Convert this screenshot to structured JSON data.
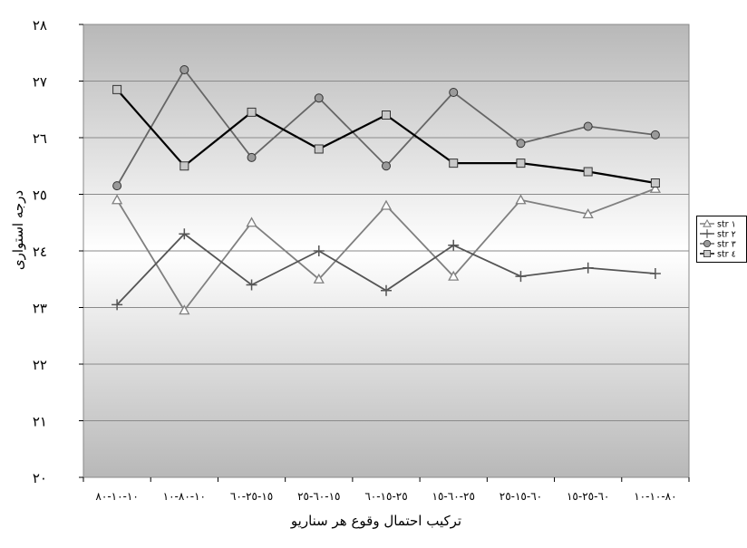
{
  "chart_data": {
    "type": "line",
    "title": "",
    "xlabel": "ترکیب احتمال وقوع هر سناریو",
    "ylabel": "درجه استواری",
    "categories": [
      "١٠-١٠-٨٠",
      "١٠-٨٠-١٠",
      "١٥-٢٥-٦٠",
      "١٥-٦٠-٢٥",
      "٢٥-١٥-٦٠",
      "٢٥-٦٠-١٥",
      "٦٠-١٥-٢٥",
      "٦٠-٢٥-١٥",
      "٨٠-١٠-١٠"
    ],
    "y_ticks": [
      "٢٠",
      "٢١",
      "٢٢",
      "٢٣",
      "٢٤",
      "٢٥",
      "٢٦",
      "٢٧",
      "٢٨"
    ],
    "ylim": [
      20,
      28
    ],
    "series": [
      {
        "name": "str ١",
        "marker": "triangle",
        "color": "#808080",
        "values": [
          24.9,
          22.95,
          24.5,
          23.5,
          24.8,
          23.55,
          24.9,
          24.65,
          25.1
        ]
      },
      {
        "name": "str ٢",
        "marker": "plus",
        "color": "#555555",
        "values": [
          23.05,
          24.3,
          23.4,
          24.0,
          23.3,
          24.1,
          23.55,
          23.7,
          23.6
        ]
      },
      {
        "name": "str ٣",
        "marker": "circle",
        "color": "#666666",
        "values": [
          25.15,
          27.2,
          25.65,
          26.7,
          25.5,
          26.8,
          25.9,
          26.2,
          26.05
        ]
      },
      {
        "name": "str ٤",
        "marker": "square",
        "color": "#000000",
        "values": [
          26.85,
          25.5,
          26.45,
          25.8,
          26.4,
          25.55,
          25.55,
          25.4,
          25.2
        ]
      }
    ],
    "grid": true,
    "legend_position": "right"
  }
}
